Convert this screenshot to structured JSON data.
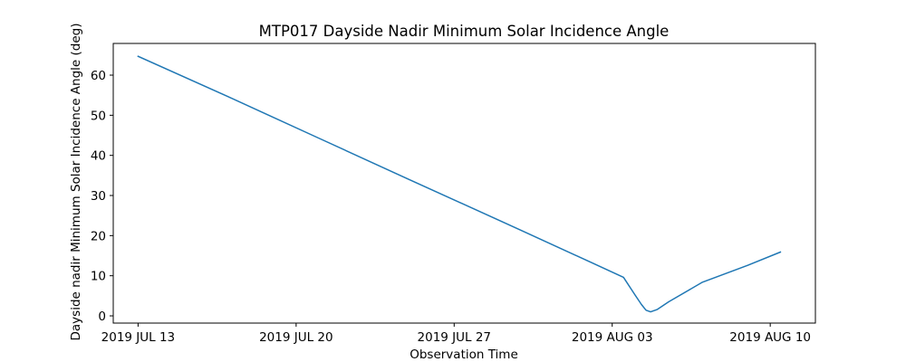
{
  "chart_data": {
    "type": "line",
    "title": "MTP017 Dayside Nadir Minimum Solar Incidence Angle",
    "xlabel": "Observation Time",
    "ylabel": "Dayside nadir Minimum Solar Incidence Angle (deg)",
    "x_unit": "days since 2019 JUL 13",
    "xlim": [
      -1.1,
      30.0
    ],
    "ylim": [
      -1.8,
      67.9
    ],
    "x_ticks": [
      {
        "value": 0,
        "label": "2019 JUL 13"
      },
      {
        "value": 7,
        "label": "2019 JUL 20"
      },
      {
        "value": 14,
        "label": "2019 JUL 27"
      },
      {
        "value": 21,
        "label": "2019 AUG 03"
      },
      {
        "value": 28,
        "label": "2019 AUG 10"
      }
    ],
    "y_ticks": [
      {
        "value": 0,
        "label": "0"
      },
      {
        "value": 10,
        "label": "10"
      },
      {
        "value": 20,
        "label": "20"
      },
      {
        "value": 30,
        "label": "30"
      },
      {
        "value": 40,
        "label": "40"
      },
      {
        "value": 50,
        "label": "50"
      },
      {
        "value": 60,
        "label": "60"
      }
    ],
    "series": [
      {
        "name": "Minimum Solar Incidence Angle",
        "color": "#1f77b4",
        "x": [
          0.0,
          4.0,
          8.0,
          12.0,
          16.0,
          20.0,
          21.5,
          22.0,
          22.3,
          22.5,
          22.7,
          23.0,
          23.5,
          25.0,
          27.0,
          28.45
        ],
        "y": [
          64.7,
          54.6,
          44.3,
          34.0,
          23.8,
          13.5,
          9.6,
          5.3,
          2.8,
          1.4,
          1.0,
          1.6,
          3.5,
          8.4,
          12.6,
          15.9
        ]
      }
    ]
  }
}
